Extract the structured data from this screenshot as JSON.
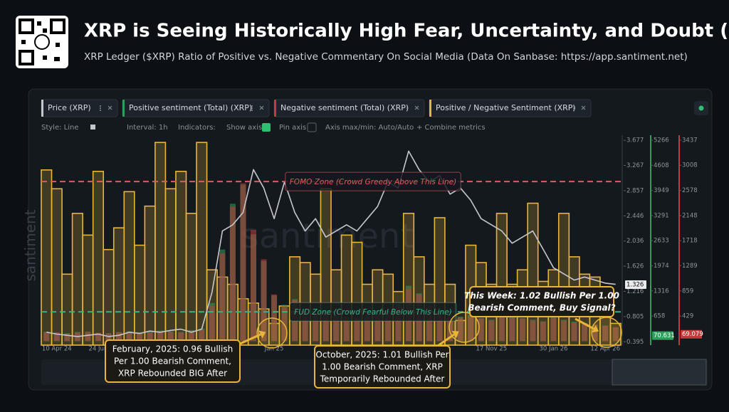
{
  "header": {
    "title": "XRP is Seeing Historically High Fear, Uncertainty, and Doubt (FUD)",
    "subtitle": "XRP Ledger ($XRP) Ratio of Positive vs. Negative Commentary On Social Media (Data On Sanbase: https://app.santiment.net)"
  },
  "toolbar": [
    "Style: Line",
    "Interval: 1h",
    "Indicators:",
    "Show axis",
    "Pin axis",
    "Axis max/min: Auto/Auto",
    "+ Combine metrics"
  ],
  "watermark": "santiment",
  "chart_data": {
    "type": "combo",
    "categories": [
      null,
      "10 Apr 24",
      null,
      null,
      null,
      "24 Jun",
      null,
      null,
      null,
      null,
      null,
      null,
      null,
      null,
      null,
      null,
      null,
      null,
      null,
      null,
      null,
      null,
      "Jan 25",
      null,
      null,
      null,
      null,
      null,
      null,
      null,
      null,
      null,
      null,
      null,
      null,
      null,
      null,
      null,
      null,
      null,
      null,
      null,
      null,
      "17 Nov 25",
      null,
      null,
      null,
      null,
      null,
      "30 Jan 26",
      null,
      null,
      null,
      null,
      "12 Apr 26",
      null
    ],
    "series": [
      {
        "name": "Positive / Negative Sentiment (XRP)",
        "type": "bar",
        "axis": "y4",
        "color": "#e8b53a",
        "values": [
          2.06,
          1.93,
          1.34,
          1.76,
          1.61,
          2.05,
          1.51,
          1.66,
          1.91,
          1.54,
          1.81,
          2.25,
          1.93,
          2.05,
          1.76,
          2.25,
          1.37,
          1.32,
          1.27,
          1.17,
          1.14,
          1.1,
          1.0,
          1.12,
          1.46,
          1.42,
          1.34,
          1.93,
          1.37,
          1.61,
          1.56,
          1.27,
          1.37,
          1.34,
          1.22,
          1.76,
          1.46,
          1.27,
          1.73,
          1.27,
          1.02,
          1.54,
          1.42,
          1.27,
          1.76,
          1.27,
          1.37,
          1.83,
          1.29,
          1.37,
          1.76,
          1.46,
          1.34,
          1.32,
          1.07,
          1.0
        ]
      },
      {
        "name": "Positive sentiment (Total) (XRP)",
        "type": "bar",
        "axis": "y3",
        "color": "#2e9e5a",
        "values": [
          250,
          230,
          210,
          240,
          250,
          220,
          210,
          240,
          260,
          230,
          250,
          280,
          260,
          240,
          290,
          330,
          1000,
          2400,
          3600,
          4100,
          2800,
          2100,
          1200,
          950,
          1100,
          800,
          720,
          800,
          670,
          640,
          600,
          680,
          720,
          800,
          980,
          1450,
          1250,
          950,
          800,
          720,
          640,
          680,
          600,
          560,
          800,
          640,
          600,
          560,
          520,
          640,
          560,
          510,
          480,
          440,
          410,
          360
        ]
      },
      {
        "name": "Negative sentiment (Total) (XRP)",
        "type": "bar",
        "axis": "y2",
        "color": "#c23a3a",
        "values": [
          150,
          140,
          130,
          150,
          160,
          140,
          130,
          150,
          160,
          140,
          150,
          170,
          160,
          150,
          180,
          200,
          600,
          1500,
          2300,
          2700,
          1900,
          1400,
          800,
          600,
          700,
          500,
          450,
          500,
          420,
          400,
          380,
          420,
          450,
          500,
          600,
          900,
          800,
          600,
          500,
          450,
          400,
          420,
          380,
          350,
          500,
          400,
          380,
          350,
          330,
          400,
          350,
          320,
          300,
          280,
          260,
          240
        ]
      },
      {
        "name": "Price (XRP)",
        "type": "line",
        "axis": "y",
        "color": "#c4c8ce",
        "values": [
          0.55,
          0.52,
          0.5,
          0.48,
          0.5,
          0.52,
          0.48,
          0.5,
          0.55,
          0.53,
          0.57,
          0.55,
          0.58,
          0.6,
          0.55,
          0.6,
          1.2,
          2.2,
          2.3,
          2.5,
          3.2,
          2.9,
          2.4,
          3.0,
          2.5,
          2.2,
          2.4,
          2.1,
          2.2,
          2.3,
          2.2,
          2.4,
          2.6,
          3.0,
          2.9,
          3.5,
          3.2,
          3.0,
          3.1,
          2.8,
          2.9,
          2.7,
          2.4,
          2.3,
          2.2,
          2.0,
          2.1,
          2.2,
          1.9,
          1.6,
          1.5,
          1.4,
          1.45,
          1.4,
          1.35,
          1.33
        ]
      }
    ],
    "legend_order": [
      3,
      1,
      2,
      0
    ],
    "ylim": [
      0.34,
      3.76
    ],
    "yticks": [
      0.395,
      0.805,
      1.216,
      1.626,
      2.036,
      2.446,
      2.857,
      3.267,
      3.677
    ],
    "y3lim": [
      -104,
      5396
    ],
    "y3ticks": [
      658,
      1316,
      1974,
      2633,
      3291,
      3949,
      4608,
      5266
    ],
    "y2lim": [
      -68,
      3522
    ],
    "y2ticks": [
      429,
      859,
      1289,
      1718,
      2148,
      2578,
      3008,
      3437
    ],
    "y4lim": [
      0.85,
      2.3
    ],
    "last_values": [
      1.326,
      70.631,
      69.079
    ],
    "reference_lines": [
      {
        "value": 1.98,
        "label": "FOMO Zone (Crowd Greedy Above This Line)",
        "color": "#e05a5a"
      },
      {
        "value": 1.08,
        "label": "FUD Zone (Crowd Fearful Below This Line)",
        "color": "#3fae8a"
      }
    ],
    "annotations": [
      {
        "lines": [
          "February, 2025: 0.96 Bullish",
          "Per 1.00 Bearish Comment,",
          "XRP Rebounded BIG After"
        ]
      },
      {
        "lines": [
          "October, 2025: 1.01 Bullish Per",
          "1.00 Bearish Comment, XRP",
          "Temporarily Rebounded After"
        ]
      },
      {
        "lines": [
          "This Week: 1.02 Bullish Per 1.00",
          "Bearish Comment, Buy Signal?"
        ]
      }
    ]
  }
}
